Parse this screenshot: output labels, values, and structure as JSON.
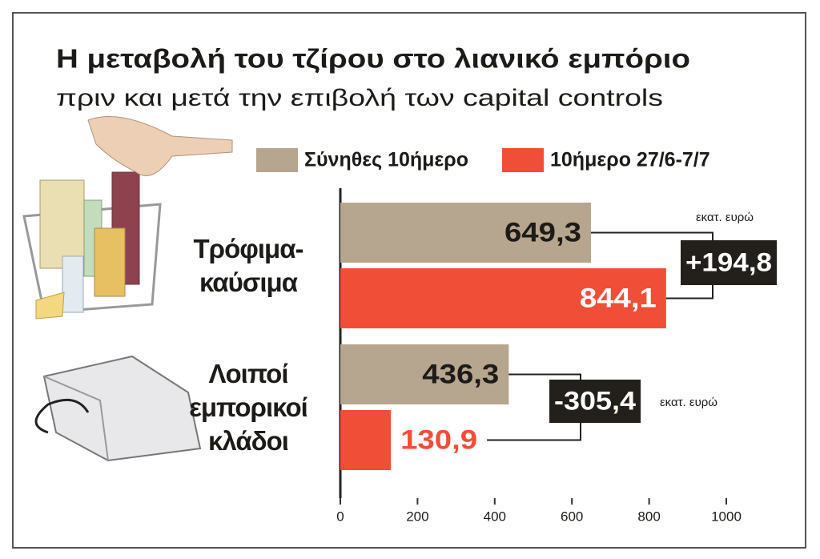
{
  "chart_data": {
    "type": "bar",
    "orientation": "horizontal",
    "title": "Η μεταβολή του τζίρου στο λιανικό εμπόριο",
    "subtitle": "πριν και μετά την επιβολή των capital controls",
    "categories": [
      "Τρόφιμα-καύσιμα",
      "Λοιποί εμπορικοί κλάδοι"
    ],
    "series": [
      {
        "name": "Σύνηθες 10ήμερο",
        "color": "#b6a58f",
        "values": [
          649.3,
          436.3
        ],
        "value_labels": [
          "649,3",
          "436,3"
        ]
      },
      {
        "name": "10ήμερο 27/6-7/7",
        "color": "#f04e37",
        "values": [
          844.1,
          130.9
        ],
        "value_labels": [
          "844,1",
          "130,9"
        ]
      }
    ],
    "xlim": [
      0,
      1000
    ],
    "xticks": [
      0,
      200,
      400,
      600,
      800,
      1000
    ],
    "annotations": [
      {
        "text": "+194,8",
        "unit": "εκατ. ευρώ"
      },
      {
        "text": "-305,4",
        "unit": "εκατ. ευρώ"
      }
    ]
  }
}
